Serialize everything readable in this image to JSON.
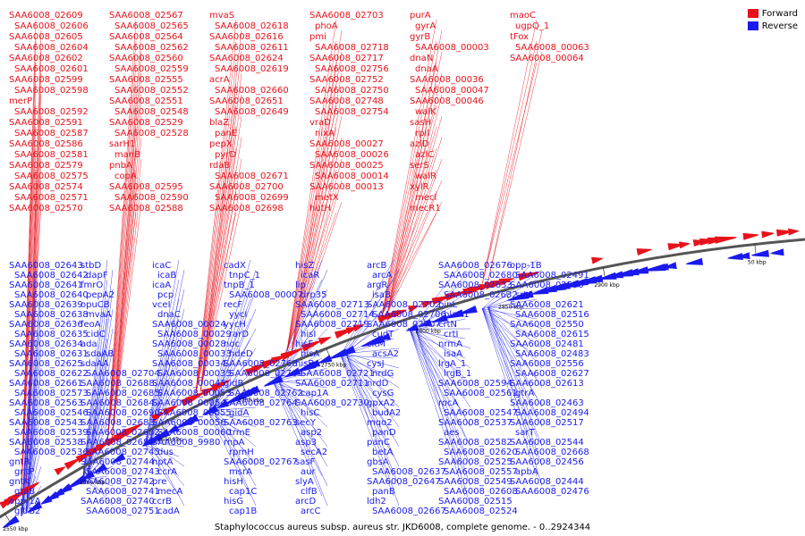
{
  "legend": {
    "forward": {
      "label": "Forward",
      "color": "#e8121b"
    },
    "reverse": {
      "label": "Reverse",
      "color": "#1a1aee"
    }
  },
  "caption": "Staphylococcus aureus subsp. aureus str. JKD6008, complete genome. - 0..2924344",
  "ticks": [
    "2550 kbp",
    "2600 kbp",
    "2650 kbp",
    "2700 kbp",
    "2750 kbp",
    "2800 kbp",
    "2850 kbp",
    "2900 kbp",
    "50 kbp"
  ],
  "labels": {
    "forward": [
      "SAA6008_02609",
      "SAA6008_02606",
      "SAA6008_02605",
      "SAA6008_02604",
      "SAA6008_02602",
      "SAA6008_02601",
      "SAA6008_02599",
      "SAA6008_02598",
      "merP",
      "SAA6008_02592",
      "SAA6008_02591",
      "SAA6008_02587",
      "SAA6008_02586",
      "SAA6008_02581",
      "SAA6008_02579",
      "SAA6008_02575",
      "SAA6008_02574",
      "SAA6008_02571",
      "SAA6008_02570",
      "SAA6008_02567",
      "SAA6008_02565",
      "SAA6008_02564",
      "SAA6008_02562",
      "SAA6008_02560",
      "SAA6008_02559",
      "SAA6008_02555",
      "SAA6008_02552",
      "SAA6008_02551",
      "SAA6008_02548",
      "SAA6008_02529",
      "SAA6008_02528",
      "sarH1",
      "manB",
      "pnbA",
      "copA",
      "SAA6008_02595",
      "SAA6008_02590",
      "SAA6008_02588",
      "mvaS",
      "SAA6008_02618",
      "SAA6008_02616",
      "SAA6008_02611",
      "SAA6008_02624",
      "SAA6008_02619",
      "acrA",
      "SAA6008_02660",
      "SAA6008_02651",
      "SAA6008_02649",
      "blaZ",
      "panE",
      "pepX",
      "pyrD",
      "rdaB",
      "SAA6008_02671",
      "SAA6008_02700",
      "SAA6008_02699",
      "SAA6008_02698",
      "SAA6008_02703",
      "phoA",
      "pmi",
      "SAA6008_02718",
      "SAA6008_02717",
      "SAA6008_02756",
      "SAA6008_02752",
      "SAA6008_02750",
      "SAA6008_02748",
      "SAA6008_02754",
      "vraD",
      "nixA",
      "SAA6008_00027",
      "SAA6008_00026",
      "SAA6008_00025",
      "SAA6008_00014",
      "SAA6008_00013",
      "metX",
      "hutH",
      "purA",
      "gyrA",
      "gyrB",
      "SAA6008_00003",
      "dnaN",
      "dnaA",
      "SAA6008_00036",
      "SAA6008_00047",
      "SAA6008_00046",
      "walK",
      "sasH",
      "rplI",
      "azlD",
      "azlC",
      "serS",
      "walR",
      "xylR",
      "mecI",
      "mecR1",
      "maoC",
      "ugpQ_1",
      "tFox",
      "SAA6008_00063",
      "SAA6008_00064"
    ],
    "reverse": [
      "SAA6008_02643",
      "SAA6008_02642",
      "SAA6008_02641",
      "SAA6008_02640",
      "SAA6008_02639",
      "SAA6008_02638",
      "SAA6008_02636",
      "SAA6008_02635",
      "SAA6008_02634",
      "SAA6008_02631",
      "SAA6008_02625",
      "SAA6008_02622",
      "SAA6008_02661",
      "SAA6008_02573",
      "SAA6008_02563",
      "SAA6008_02546",
      "SAA6008_02543",
      "SAA6008_02539",
      "SAA6008_02538",
      "SAA6008_02536",
      "gntR",
      "gntP",
      "gntK",
      "gtaB",
      "opp-1A",
      "glt B2",
      "stbD",
      "dapF",
      "fmrO",
      "pepA2",
      "opuCB",
      "mvaA",
      "feoA",
      "cidC",
      "ada",
      "sdaAB",
      "sdaAA",
      "SAA6008_02704",
      "SAA6008_02688",
      "SAA6008_02685",
      "SAA6008_02684",
      "SAA6008_02690",
      "SAA6008_02683",
      "SAA6008_02682",
      "SAA6008_02681",
      "SAA6008_02745",
      "SAA6008_02744",
      "SAA6008_02743",
      "SAA6008_02742",
      "SAA6008_02741",
      "SAA6008_02740",
      "SAA6008_02751",
      "icaC",
      "icaB",
      "icaA",
      "pcp",
      "vceI",
      "dnaC",
      "SAA6008_00024",
      "SAA6008_00029",
      "SAA6008_00028",
      "SAA6008_00033",
      "SAA6008_00034",
      "SAA6008_00035",
      "SAA6008_00045",
      "SAA6008_00053",
      "SAA6008_00054",
      "SAA6008_00055",
      "SAA6008_00056",
      "SAA6008_00060",
      "SAA6008_9980",
      "dus",
      "nptA",
      "ccrA",
      "pre",
      "mecA",
      "ccrB",
      "cadA",
      "cadX",
      "tnpC_1",
      "tnpB_1",
      "SAA6008_00007",
      "recF",
      "yycI",
      "yycH",
      "rarD",
      "noc",
      "hdeD",
      "SAA6008_02768",
      "SAA6008_02769",
      "gidB",
      "SAA6008_02762",
      "SAA6008_02764",
      "gidA",
      "SAA6008_02763",
      "trmE",
      "rnpA",
      "rpmH",
      "SAA6008_02767",
      "msrA",
      "hisH",
      "cap1C",
      "hisG",
      "cap1B",
      "hisZ",
      "icaR",
      "lip",
      "drp35",
      "SAA6008_02713",
      "SAA6008_02714",
      "SAA6008_02719",
      "hisI",
      "hisF",
      "hisA",
      "hisB",
      "SAA6008_02721",
      "SAA6008_02711",
      "cap1A",
      "SAA6008_02730",
      "hisC",
      "secY",
      "asp2",
      "asp3",
      "secA2",
      "sasF",
      "aur",
      "slyA",
      "clfB",
      "arcD",
      "arcC",
      "arcB",
      "arcA",
      "argR",
      "isaB",
      "SAA6008_02702",
      "SAA6008_02706",
      "SAA6008_02707",
      "cudT",
      "citM",
      "acsA2",
      "cysJ",
      "nrdG",
      "nrdD",
      "cysG",
      "gpxA2",
      "budA2",
      "mqo2",
      "panD",
      "panC",
      "betA",
      "gbsA",
      "SAA6008_02637",
      "SAA6008_02647",
      "panB",
      "ldh2",
      "SAA6008_02667",
      "SAA6008_02676",
      "SAA6008_02680",
      "SAA6008_02633",
      "SAA6008_02632",
      "binL",
      "blaR1",
      "crtN",
      "crtI",
      "nrmA",
      "isaA",
      "lrgA_1",
      "lrgB_1",
      "SAA6008_02594",
      "SAA6008_02561",
      "rocA",
      "SAA6008_02547",
      "SAA6008_02537",
      "aes",
      "SAA6008_02582",
      "SAA6008_02620",
      "SAA6008_02525",
      "SAA6008_02557",
      "SAA6008_02549",
      "SAA6008_02608",
      "SAA6008_02515",
      "SAA6008_02524",
      "opp-1B",
      "SAA6008_02491",
      "SAA6008_02530",
      "srtA",
      "SAA6008_02621",
      "SAA6008_02516",
      "SAA6008_02550",
      "SAA6008_02615",
      "SAA6008_02481",
      "SAA6008_02483",
      "SAA6008_02556",
      "SAA6008_02627",
      "SAA6008_02613",
      "gtrA",
      "SAA6008_02463",
      "SAA6008_02494",
      "SAA6008_02517",
      "sarT",
      "SAA6008_02544",
      "SAA6008_02668",
      "SAA6008_02456",
      "apbA",
      "SAA6008_02444",
      "SAA6008_02476"
    ]
  }
}
